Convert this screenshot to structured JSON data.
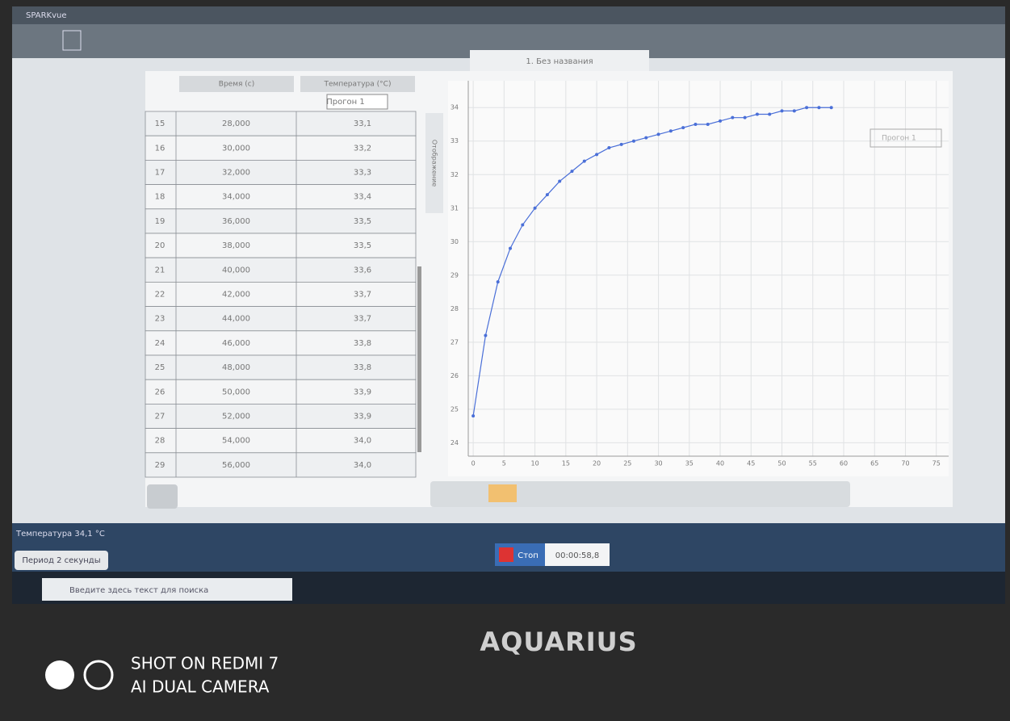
{
  "app": {
    "title": "SPARKvue",
    "tab": "1. Без названия",
    "side_tab": "Отображение"
  },
  "table": {
    "headers": [
      "Время (с)",
      "Температура (°C)"
    ],
    "run_select": "Прогон 1",
    "rows": [
      [
        "15",
        "28,000",
        "33,1"
      ],
      [
        "16",
        "30,000",
        "33,2"
      ],
      [
        "17",
        "32,000",
        "33,3"
      ],
      [
        "18",
        "34,000",
        "33,4"
      ],
      [
        "19",
        "36,000",
        "33,5"
      ],
      [
        "20",
        "38,000",
        "33,5"
      ],
      [
        "21",
        "40,000",
        "33,6"
      ],
      [
        "22",
        "42,000",
        "33,7"
      ],
      [
        "23",
        "44,000",
        "33,7"
      ],
      [
        "24",
        "46,000",
        "33,8"
      ],
      [
        "25",
        "48,000",
        "33,8"
      ],
      [
        "26",
        "50,000",
        "33,9"
      ],
      [
        "27",
        "52,000",
        "33,9"
      ],
      [
        "28",
        "54,000",
        "34,0"
      ],
      [
        "29",
        "56,000",
        "34,0"
      ]
    ]
  },
  "chart_data": {
    "type": "line",
    "legend": "Прогон 1",
    "x": [
      0,
      2,
      4,
      6,
      8,
      10,
      12,
      14,
      16,
      18,
      20,
      22,
      24,
      26,
      28,
      30,
      32,
      34,
      36,
      38,
      40,
      42,
      44,
      46,
      48,
      50,
      52,
      54,
      56,
      58
    ],
    "series": [
      {
        "name": "Прогон 1",
        "color": "#4a6fd8",
        "values": [
          24.8,
          27.2,
          28.8,
          29.8,
          30.5,
          31.0,
          31.4,
          31.8,
          32.1,
          32.4,
          32.6,
          32.8,
          32.9,
          33.0,
          33.1,
          33.2,
          33.3,
          33.4,
          33.5,
          33.5,
          33.6,
          33.7,
          33.7,
          33.8,
          33.8,
          33.9,
          33.9,
          34.0,
          34.0,
          34.0
        ]
      }
    ],
    "xlim": [
      -0.8,
      77
    ],
    "xticks": [
      0,
      5,
      10,
      15,
      20,
      25,
      30,
      35,
      40,
      45,
      50,
      55,
      60,
      65,
      70,
      75
    ],
    "ylim": [
      23.6,
      34.8
    ],
    "yticks": [
      24,
      25,
      26,
      27,
      28,
      29,
      30,
      31,
      32,
      33,
      34
    ],
    "grid": true
  },
  "status": {
    "sensor": "Температура 34,1 °C",
    "period": "Период 2 секунды",
    "stop": "Стоп",
    "timer": "00:00:58,8"
  },
  "taskbar": {
    "search": "Введите здесь текст для поиска"
  },
  "laptop": {
    "brand": "AQUARIUS"
  },
  "watermark": {
    "line1": "SHOT ON REDMI 7",
    "line2": "AI DUAL CAMERA"
  }
}
